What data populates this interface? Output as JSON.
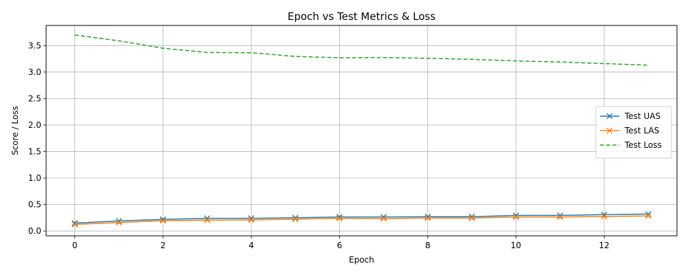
{
  "chart_data": {
    "type": "line",
    "title": "Epoch vs Test Metrics & Loss",
    "xlabel": "Epoch",
    "ylabel": "Score / Loss",
    "x": [
      0,
      1,
      2,
      3,
      4,
      5,
      6,
      7,
      8,
      9,
      10,
      11,
      12,
      13
    ],
    "xlim": [
      -0.65,
      13.65
    ],
    "ylim": [
      -0.09,
      3.88
    ],
    "xticks": [
      0,
      2,
      4,
      6,
      8,
      10,
      12
    ],
    "yticks": [
      0.0,
      0.5,
      1.0,
      1.5,
      2.0,
      2.5,
      3.0,
      3.5
    ],
    "grid": true,
    "legend_position": "center-right",
    "series": [
      {
        "name": "Test UAS",
        "color": "#1f77b4",
        "style": "solid",
        "marker": "x",
        "values": [
          0.15,
          0.19,
          0.22,
          0.24,
          0.24,
          0.25,
          0.265,
          0.265,
          0.27,
          0.27,
          0.295,
          0.295,
          0.31,
          0.32
        ]
      },
      {
        "name": "Test LAS",
        "color": "#ff7f0e",
        "style": "solid",
        "marker": "x",
        "values": [
          0.125,
          0.16,
          0.195,
          0.205,
          0.21,
          0.225,
          0.24,
          0.235,
          0.245,
          0.245,
          0.265,
          0.265,
          0.275,
          0.285
        ]
      },
      {
        "name": "Test Loss",
        "color": "#2ca02c",
        "style": "dashed",
        "marker": "none",
        "values": [
          3.7,
          3.59,
          3.45,
          3.37,
          3.365,
          3.295,
          3.27,
          3.275,
          3.26,
          3.24,
          3.21,
          3.19,
          3.16,
          3.13
        ]
      }
    ]
  }
}
